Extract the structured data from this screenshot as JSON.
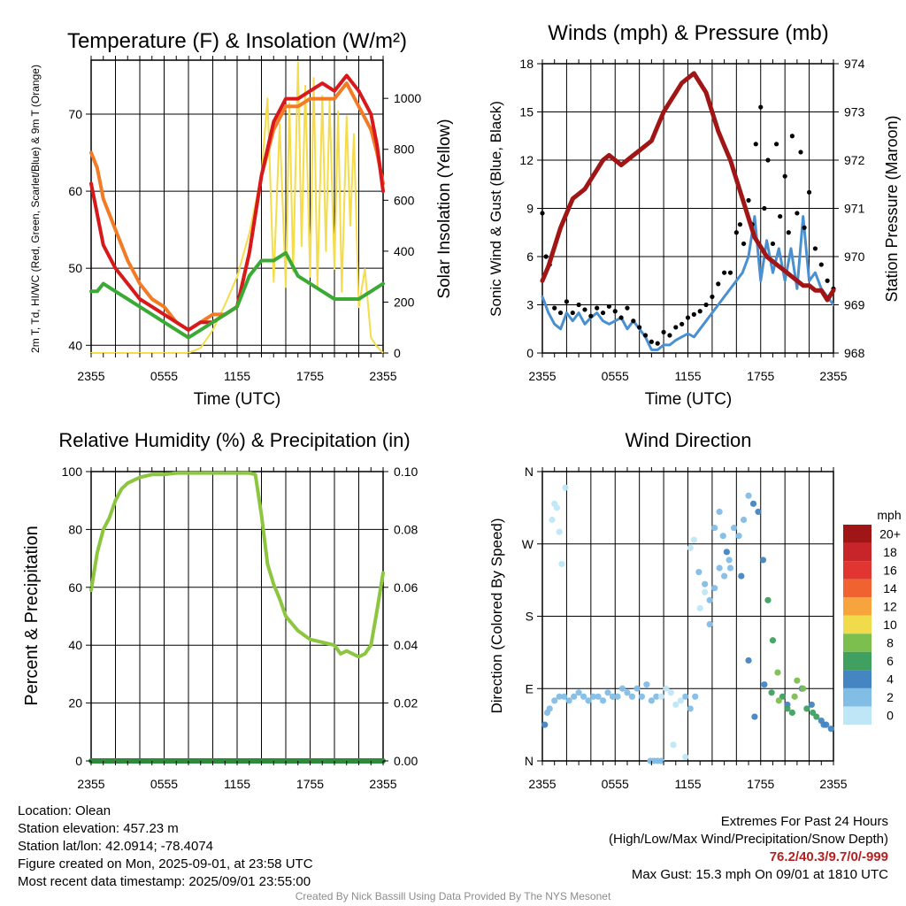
{
  "colors": {
    "t2m": "#d7191c",
    "hiwc": "#e8282a",
    "dew": "#3aaa35",
    "t9m": "#f27b26",
    "solar": "#f5dc4a",
    "wind": "#4a90d0",
    "gust": "#000000",
    "pressure": "#a01616",
    "rh": "#8cc63f",
    "precip": "#2e8b3d"
  },
  "chart_data": [
    {
      "id": "temp",
      "type": "line",
      "title": "Temperature (F) & Insolation (W/m²)",
      "xlabel": "Time (UTC)",
      "ylabel_left": "2m T, Td, HI/WC (Red, Green, Scarlet/Blue) & 9m T (Orange)",
      "ylabel_right": "Solar Insolation (Yellow)",
      "x_ticks": [
        "2355",
        "0555",
        "1155",
        "1755",
        "2355"
      ],
      "x_range_hours": [
        0,
        24
      ],
      "ylim_left": [
        39,
        77
      ],
      "yticks_left": [
        40,
        50,
        60,
        70
      ],
      "ylim_right": [
        0,
        1150
      ],
      "yticks_right": [
        0,
        200,
        400,
        600,
        800,
        1000
      ],
      "series": [
        {
          "key": "t9m",
          "axis": "left",
          "width": 4,
          "x": [
            0,
            0.5,
            1,
            2,
            3,
            4,
            5,
            6,
            7,
            8,
            9,
            10,
            11,
            12,
            13,
            14,
            15,
            16,
            17,
            18,
            19,
            20,
            21,
            22,
            23,
            23.5,
            24
          ],
          "y": [
            65,
            63,
            59,
            55,
            51,
            48,
            46,
            45,
            43,
            42,
            43,
            44,
            44,
            45,
            52,
            62,
            68,
            71,
            71,
            72,
            72,
            72,
            74,
            71,
            68,
            65,
            61
          ]
        },
        {
          "key": "t2m",
          "axis": "left",
          "width": 4,
          "x": [
            0,
            0.5,
            1,
            2,
            3,
            4,
            5,
            6,
            7,
            8,
            9,
            10,
            11,
            12,
            13,
            14,
            15,
            16,
            17,
            18,
            19,
            20,
            21,
            22,
            23,
            23.5,
            24
          ],
          "y": [
            61,
            57,
            53,
            50,
            48,
            46,
            45,
            44,
            43,
            42,
            43,
            43,
            44,
            45,
            52,
            62,
            69,
            72,
            72,
            73,
            74,
            73,
            75,
            73,
            70,
            66,
            60
          ]
        },
        {
          "key": "dew",
          "axis": "left",
          "width": 4,
          "x": [
            0,
            0.5,
            1,
            2,
            3,
            4,
            5,
            6,
            7,
            8,
            9,
            10,
            11,
            12,
            13,
            14,
            15,
            16,
            17,
            18,
            19,
            20,
            21,
            22,
            23,
            24
          ],
          "y": [
            47,
            47,
            48,
            47,
            46,
            45,
            44,
            43,
            42,
            41,
            42,
            43,
            44,
            45,
            49,
            51,
            51,
            52,
            49,
            48,
            47,
            46,
            46,
            46,
            47,
            48
          ]
        },
        {
          "key": "solar",
          "axis": "right",
          "width": 2,
          "x": [
            0,
            8,
            9,
            10,
            11,
            12,
            13,
            14,
            14.5,
            15,
            15.5,
            16,
            16.3,
            16.6,
            17,
            17.3,
            17.6,
            18,
            18.3,
            18.6,
            19,
            19.3,
            19.6,
            20,
            20.3,
            20.6,
            21,
            21.3,
            21.6,
            22,
            22.5,
            23,
            23.5,
            24
          ],
          "y": [
            0,
            0,
            20,
            90,
            190,
            300,
            470,
            700,
            1000,
            280,
            900,
            260,
            980,
            320,
            1140,
            420,
            1050,
            300,
            1080,
            260,
            1010,
            400,
            990,
            330,
            950,
            240,
            930,
            500,
            860,
            180,
            330,
            60,
            25,
            0
          ]
        }
      ]
    },
    {
      "id": "wind",
      "type": "scatter",
      "title": "Winds (mph) & Pressure (mb)",
      "xlabel": "Time (UTC)",
      "ylabel_left": "Sonic Wind & Gust (Blue, Black)",
      "ylabel_right": "Station Pressure (Maroon)",
      "x_ticks": [
        "2355",
        "0555",
        "1155",
        "1755",
        "2355"
      ],
      "x_range_hours": [
        0,
        24
      ],
      "ylim_left": [
        0,
        18
      ],
      "yticks_left": [
        0,
        3,
        6,
        9,
        12,
        15,
        18
      ],
      "ylim_right": [
        968,
        974
      ],
      "yticks_right": [
        968,
        969,
        970,
        971,
        972,
        973,
        974
      ],
      "wind": {
        "x": [
          0,
          0.5,
          1,
          1.5,
          2,
          2.5,
          3,
          3.5,
          4,
          4.5,
          5,
          5.5,
          6,
          6.5,
          7,
          7.5,
          8,
          8.5,
          9,
          9.5,
          10,
          10.5,
          11,
          11.5,
          12,
          12.5,
          13,
          13.5,
          14,
          14.5,
          15,
          15.5,
          16,
          16.5,
          17,
          17.5,
          18,
          18.5,
          19,
          19.5,
          20,
          20.5,
          21,
          21.5,
          22,
          22.5,
          23,
          23.5,
          24
        ],
        "y": [
          3.5,
          2.5,
          1.8,
          1.5,
          2.5,
          2.0,
          2.5,
          1.8,
          2.2,
          2.5,
          2.0,
          1.8,
          2.0,
          2.2,
          1.5,
          2.0,
          1.5,
          1.0,
          0.2,
          0.2,
          0.5,
          0.5,
          0.8,
          1.0,
          1.2,
          1.0,
          1.5,
          2.0,
          2.5,
          3.0,
          3.5,
          4.0,
          4.5,
          5.0,
          6.0,
          8.5,
          4.5,
          7.0,
          5.0,
          6.5,
          4.5,
          6.5,
          4.0,
          8.5,
          4.5,
          5.0,
          4.0,
          3.5,
          3.0
        ]
      },
      "gust": {
        "x": [
          0,
          0.3,
          0.6,
          1,
          1.5,
          2,
          2.5,
          3,
          3.5,
          4,
          4.5,
          5,
          5.5,
          6,
          6.5,
          7,
          7.5,
          8,
          8.5,
          9,
          9.5,
          10,
          10.5,
          11,
          11.5,
          12,
          12.5,
          13,
          13.5,
          14,
          14.5,
          15,
          15.5,
          16,
          16.3,
          16.6,
          17,
          17.3,
          17.6,
          18,
          18.3,
          18.6,
          19,
          19.3,
          19.6,
          20,
          20.3,
          20.6,
          21,
          21.3,
          21.6,
          22,
          22.5,
          23,
          23.5,
          24
        ],
        "y": [
          8.7,
          6.0,
          5.5,
          2.8,
          2.5,
          3.2,
          2.5,
          3.0,
          2.7,
          2.3,
          2.8,
          2.5,
          2.9,
          2.6,
          2.2,
          2.8,
          2.0,
          1.6,
          1.1,
          0.7,
          0.6,
          1.3,
          1.1,
          1.6,
          1.8,
          2.2,
          2.4,
          2.6,
          3.0,
          3.5,
          4.3,
          5.0,
          5.0,
          7.5,
          8.0,
          6.8,
          9.5,
          8.0,
          13.0,
          15.3,
          9.0,
          12.0,
          6.8,
          13.0,
          8.5,
          11.0,
          7.5,
          13.5,
          8.7,
          12.5,
          7.8,
          10.0,
          6.5,
          5.5,
          4.5,
          4.0
        ]
      },
      "pressure": {
        "x": [
          0,
          0.5,
          1,
          1.5,
          2,
          2.5,
          3,
          3.5,
          4,
          4.5,
          5,
          5.5,
          6,
          6.5,
          7,
          7.5,
          8,
          8.5,
          9,
          9.5,
          10,
          10.5,
          11,
          11.5,
          12,
          12.5,
          13,
          13.5,
          14,
          14.5,
          15,
          15.5,
          16,
          16.5,
          17,
          17.5,
          18,
          18.5,
          19,
          19.5,
          20,
          20.5,
          21,
          21.5,
          22,
          22.5,
          23,
          23.5,
          24
        ],
        "y": [
          969.5,
          969.8,
          970.2,
          970.6,
          970.9,
          971.2,
          971.3,
          971.4,
          971.6,
          971.8,
          972.0,
          972.1,
          972.0,
          971.9,
          972.0,
          972.1,
          972.2,
          972.3,
          972.4,
          972.7,
          973.0,
          973.2,
          973.4,
          973.6,
          973.7,
          973.8,
          973.6,
          973.4,
          973.0,
          972.6,
          972.3,
          972.0,
          971.6,
          971.2,
          970.8,
          970.4,
          970.2,
          970.0,
          969.9,
          969.8,
          969.7,
          969.6,
          969.5,
          969.4,
          969.4,
          969.3,
          969.3,
          969.1,
          969.3
        ]
      }
    },
    {
      "id": "rh",
      "type": "line",
      "title": "Relative Humidity (%) & Precipitation (in)",
      "ylabel_left": "Percent & Precipitation",
      "x_ticks": [
        "2355",
        "0555",
        "1155",
        "1755",
        "2355"
      ],
      "x_range_hours": [
        0,
        24
      ],
      "ylim_left": [
        0,
        100
      ],
      "yticks_left": [
        0,
        20,
        40,
        60,
        80,
        100
      ],
      "ylim_right": [
        0,
        0.1
      ],
      "yticks_right": [
        "0.00",
        "0.02",
        "0.04",
        "0.06",
        "0.08",
        "0.10"
      ],
      "rh": {
        "x": [
          0,
          0.5,
          1,
          1.5,
          2,
          2.5,
          3,
          3.5,
          4,
          5,
          6,
          7,
          8,
          9,
          10,
          11,
          12,
          13,
          13.5,
          14,
          14.5,
          15,
          15.5,
          16,
          17,
          18,
          19,
          20,
          20.5,
          21,
          21.5,
          22,
          22.5,
          23,
          23.5,
          24
        ],
        "y": [
          59,
          72,
          80,
          84,
          90,
          94,
          96,
          97,
          98,
          99,
          99,
          99.5,
          99.5,
          99.5,
          99.5,
          99.5,
          99.5,
          99.5,
          99,
          85,
          68,
          61,
          56,
          50,
          45,
          42,
          41,
          40,
          37,
          38,
          37,
          36,
          37,
          40,
          52,
          65
        ]
      },
      "precip": {
        "x": [
          0,
          24
        ],
        "y": [
          0,
          0
        ]
      }
    },
    {
      "id": "dir",
      "type": "scatter",
      "title": "Wind Direction",
      "ylabel_left": "Direction (Colored By Speed)",
      "x_ticks": [
        "2355",
        "0555",
        "1155",
        "1755",
        "2355"
      ],
      "x_range_hours": [
        0,
        24
      ],
      "ylim_left": [
        0,
        360
      ],
      "yticks_left": [
        "N",
        "E",
        "S",
        "W",
        "N"
      ],
      "colorbar": {
        "unit": "mph",
        "labels": [
          "20+",
          "18",
          "16",
          "14",
          "12",
          "10",
          "8",
          "6",
          "4",
          "2",
          "0"
        ],
        "colors": [
          "#a01616",
          "#c8252a",
          "#e03530",
          "#f06330",
          "#f7a43d",
          "#f0dc4a",
          "#7cbf4f",
          "#3fa060",
          "#4585c2",
          "#82bde6",
          "#bfe6f7"
        ]
      },
      "points": {
        "x": [
          0.2,
          0.4,
          0.6,
          1.0,
          1.4,
          1.8,
          2.2,
          2.6,
          3.0,
          3.4,
          3.8,
          4.2,
          4.6,
          5.0,
          5.4,
          5.8,
          6.2,
          6.6,
          7.0,
          7.4,
          7.8,
          8.2,
          8.6,
          9.0,
          9.4,
          9.8,
          10.2,
          10.6,
          11.0,
          11.4,
          11.8,
          12.2,
          12.6,
          13.0,
          13.4,
          13.8,
          14.2,
          14.6,
          15.0,
          15.4,
          15.8,
          16.2,
          16.6,
          17.0,
          17.4,
          17.8,
          18.2,
          18.6,
          19.0,
          19.4,
          19.8,
          20.2,
          20.6,
          21.0,
          21.4,
          21.8,
          22.2,
          22.6,
          23.0,
          23.4,
          23.8,
          0.8,
          1.0,
          1.2,
          1.4,
          1.6,
          1.9,
          8.9,
          9.2,
          9.5,
          9.8,
          12.2,
          12.5,
          12.9,
          13.4,
          13.8,
          14.2,
          14.6,
          14.9,
          15.2,
          15.5,
          16.4,
          17.0,
          17.5,
          18.3,
          18.9,
          19.5,
          20.2,
          20.8,
          21.5,
          22.3,
          23.2,
          10.8,
          11.8
        ],
        "y": [
          45,
          60,
          65,
          75,
          80,
          80,
          75,
          80,
          85,
          80,
          75,
          80,
          80,
          75,
          85,
          80,
          80,
          90,
          85,
          80,
          90,
          80,
          95,
          75,
          80,
          80,
          90,
          85,
          70,
          75,
          80,
          65,
          80,
          190,
          210,
          200,
          215,
          240,
          230,
          250,
          290,
          280,
          300,
          330,
          320,
          310,
          250,
          200,
          150,
          110,
          80,
          70,
          60,
          100,
          90,
          65,
          70,
          55,
          50,
          45,
          40,
          300,
          320,
          315,
          285,
          245,
          340,
          0,
          0,
          0,
          0,
          265,
          275,
          235,
          220,
          170,
          290,
          310,
          280,
          260,
          240,
          230,
          125,
          55,
          95,
          85,
          75,
          65,
          80,
          90,
          60,
          45,
          20,
          5
        ],
        "s": [
          4,
          3,
          3,
          3,
          2,
          2,
          3,
          3,
          2,
          3,
          2,
          3,
          3,
          2,
          3,
          2,
          2,
          3,
          2,
          2,
          3,
          2,
          2,
          2,
          2,
          1,
          1,
          1,
          1,
          1,
          2,
          2,
          2,
          1,
          1,
          2,
          2,
          3,
          3,
          3,
          3,
          3,
          3,
          3,
          4,
          4,
          5,
          6,
          7,
          8,
          6,
          5,
          7,
          8,
          5,
          6,
          4,
          7,
          5,
          4,
          4,
          1,
          1,
          1,
          1,
          1,
          1,
          2,
          2,
          2,
          2,
          1,
          1,
          2,
          2,
          3,
          2,
          3,
          3,
          4,
          3,
          4,
          4,
          4,
          5,
          7,
          9,
          6,
          8,
          9,
          6,
          5,
          1,
          1
        ]
      }
    }
  ],
  "info": {
    "location": "Location: Olean",
    "elevation": "Station elevation: 457.23 m",
    "latlon": "Station lat/lon: 42.0914; -78.4074",
    "created": "Figure created on Mon, 2025-09-01, at 23:58 UTC",
    "recent": "Most recent data timestamp: 2025/09/01 23:55:00"
  },
  "extremes": {
    "title": "Extremes For Past 24 Hours",
    "subtitle": "(High/Low/Max Wind/Precipitation/Snow Depth)",
    "values": "76.2/40.3/9.7/0/-999",
    "gust": "Max Gust: 15.3 mph On 09/01 at 1810 UTC"
  },
  "credit": "Created By Nick Bassill Using Data Provided By The NYS Mesonet"
}
